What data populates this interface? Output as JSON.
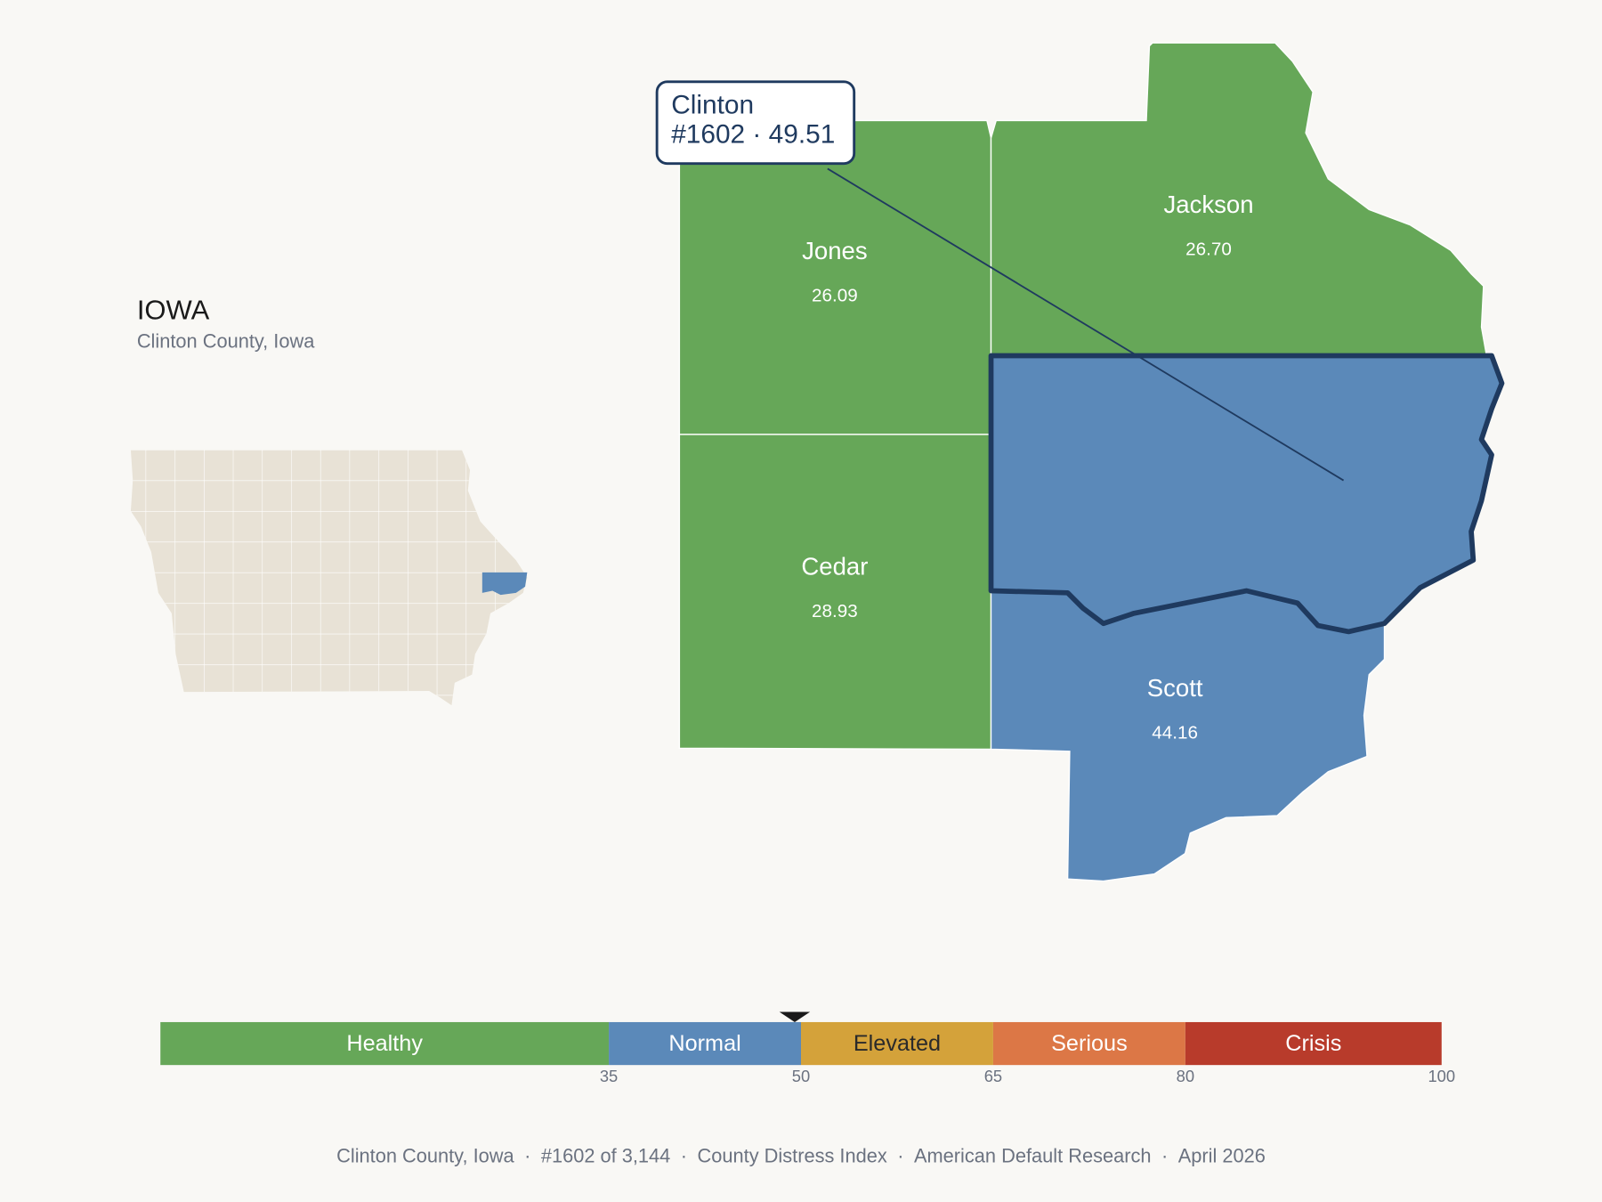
{
  "header": {
    "title": "IOWA",
    "subtitle": "Clinton County, Iowa"
  },
  "tooltip": {
    "lines": [
      "Clinton",
      "#1602 · 49.51"
    ]
  },
  "counties": [
    {
      "name": "Jones",
      "value": "26.09"
    },
    {
      "name": "Jackson",
      "value": "26.70"
    },
    {
      "name": "Cedar",
      "value": "28.93"
    },
    {
      "name": "Scott",
      "value": "44.16"
    }
  ],
  "legend": {
    "range": [
      0,
      100
    ],
    "ticks": [
      35,
      50,
      65,
      80,
      100
    ],
    "marker": 49.51,
    "bands": [
      {
        "label": "Healthy",
        "color": "#66a758",
        "text_color": "#ffffff"
      },
      {
        "label": "Normal",
        "color": "#5b89b9",
        "text_color": "#ffffff"
      },
      {
        "label": "Elevated",
        "color": "#d4a23a",
        "text_color": "#2a2a2a"
      },
      {
        "label": "Serious",
        "color": "#dc7746",
        "text_color": "#ffffff"
      },
      {
        "label": "Crisis",
        "color": "#b83b2b",
        "text_color": "#ffffff"
      }
    ]
  },
  "footer": [
    "Clinton County, Iowa",
    "#1602 of 3,144",
    "County Distress Index",
    "American Default Research",
    "April 2026"
  ]
}
